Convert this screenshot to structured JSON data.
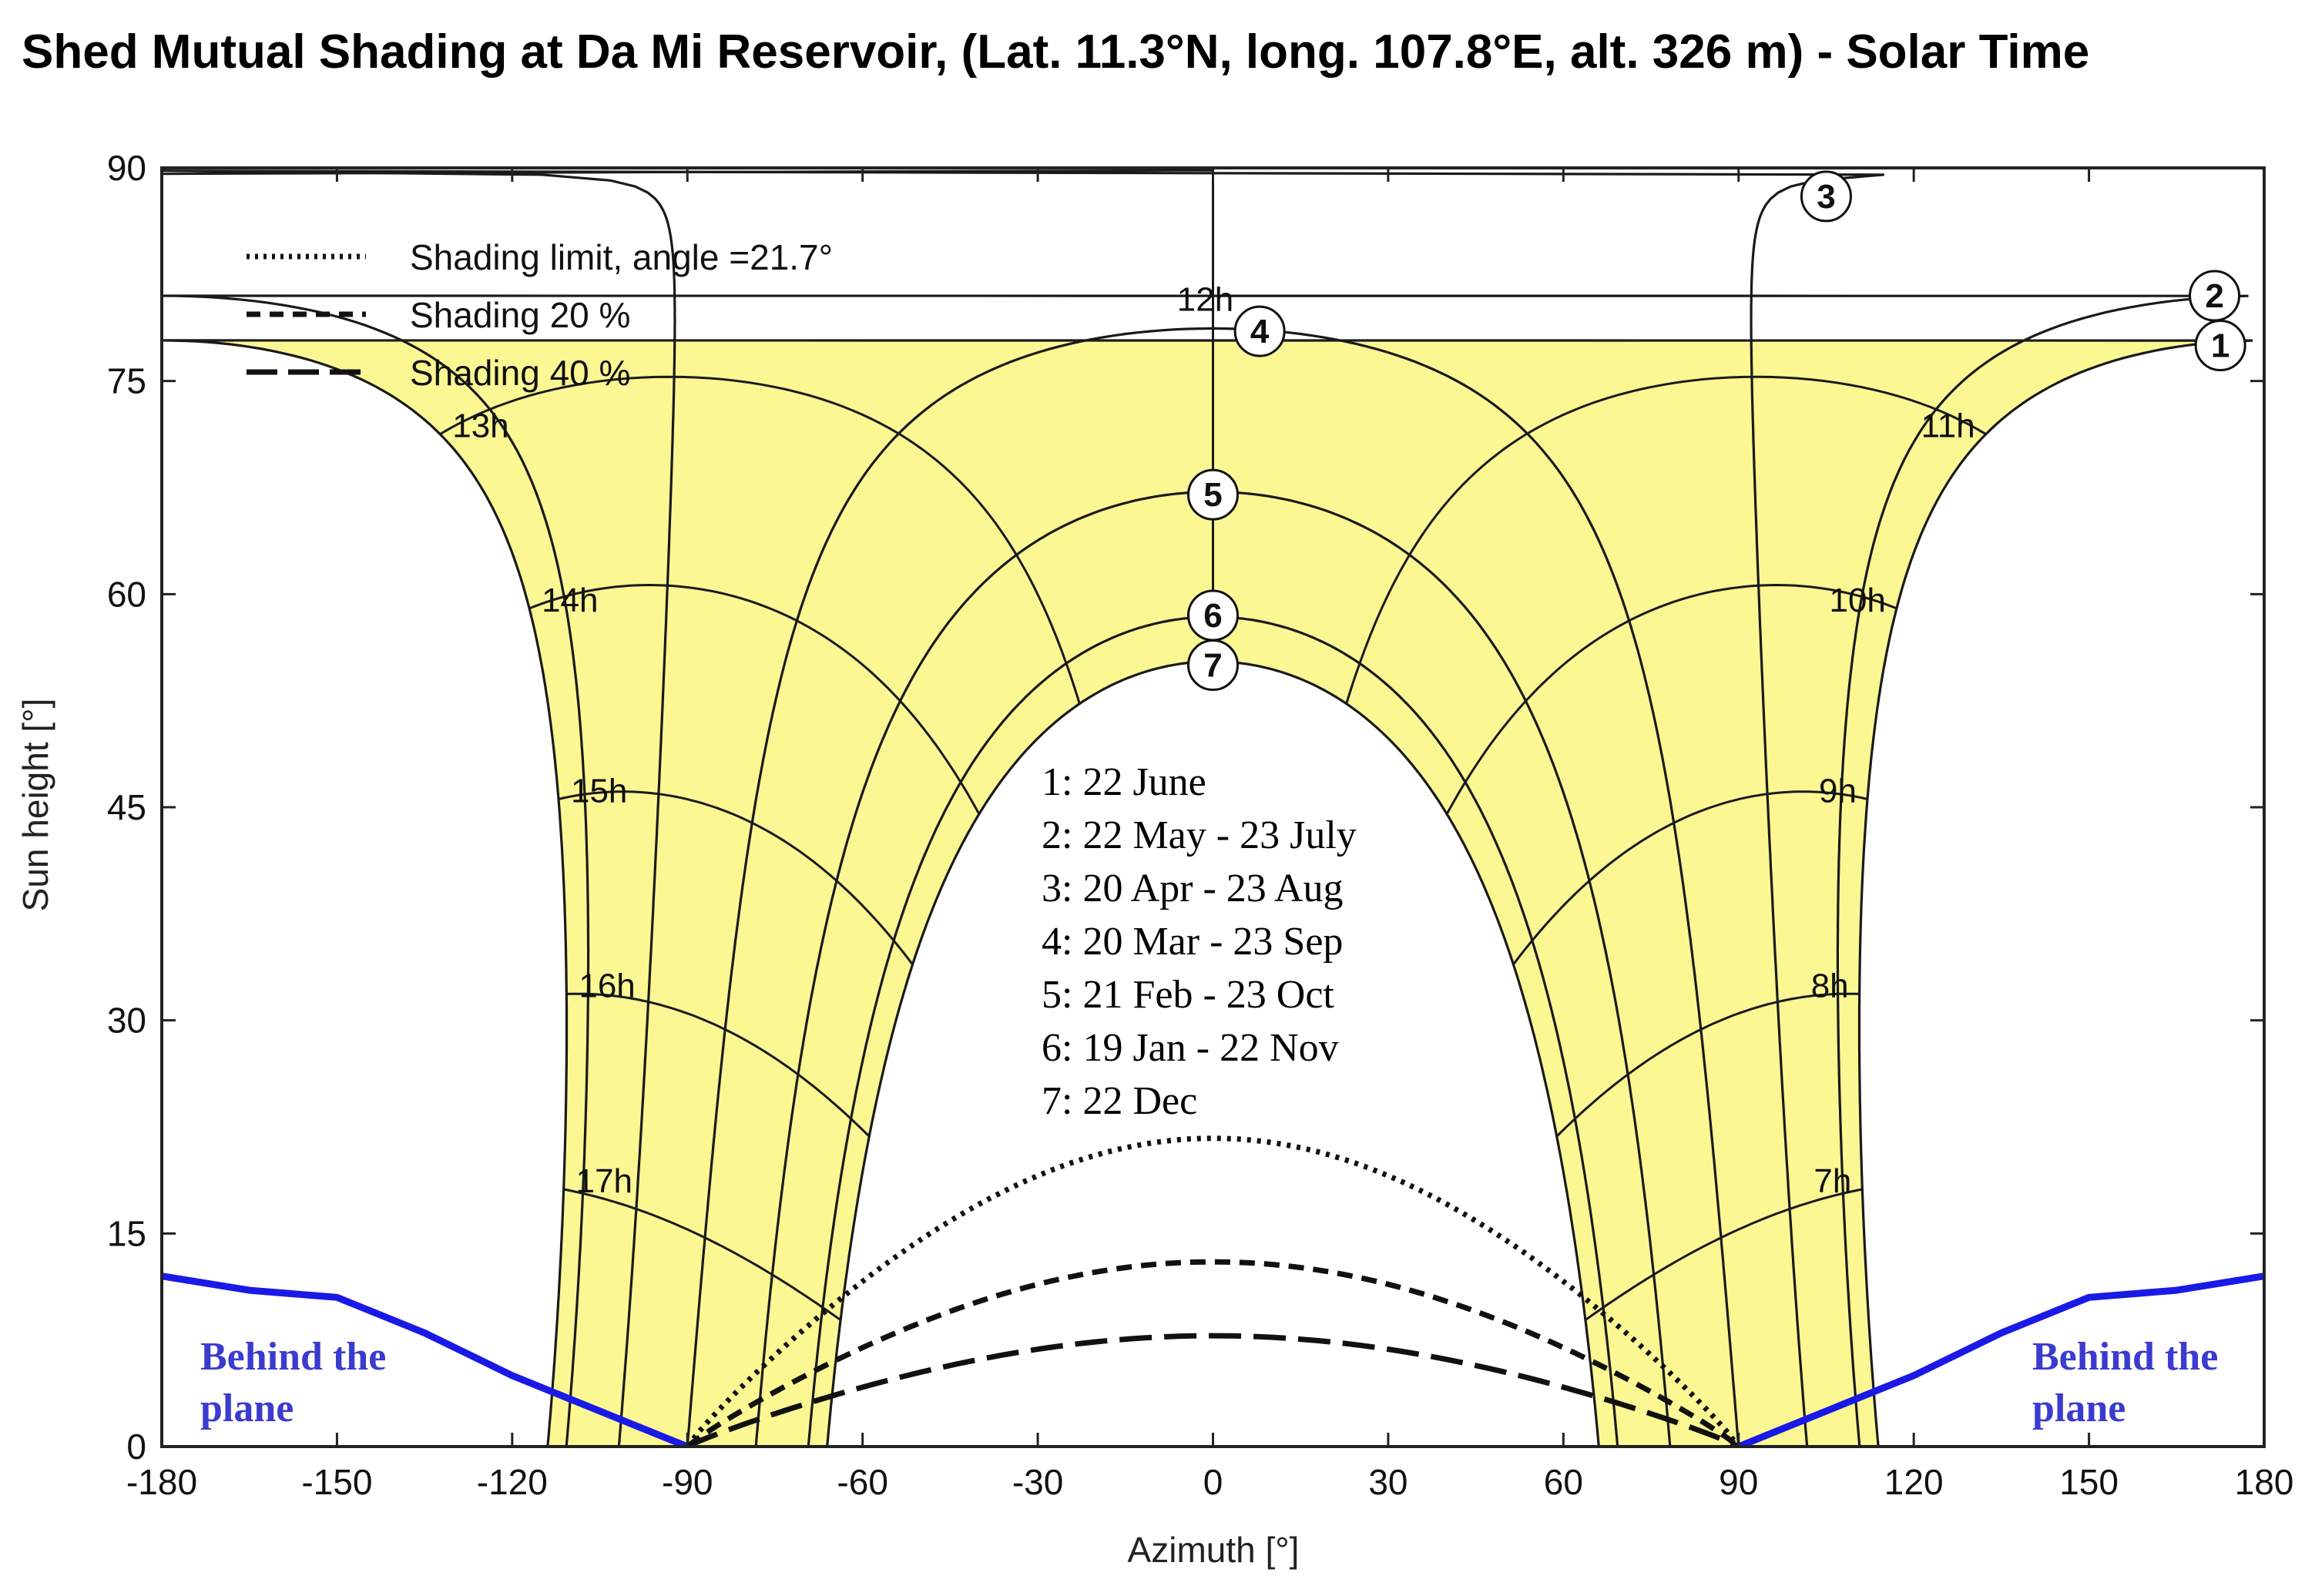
{
  "chart_data": {
    "type": "line",
    "title": "Shed Mutual Shading at  Da Mi Reservoir, (Lat. 11.3°N, long. 107.8°E, alt. 326 m) - Solar Time",
    "xlabel": "Azimuth  [°]",
    "ylabel": "Sun height  [°]",
    "xlim": [
      -180,
      180
    ],
    "ylim": [
      0,
      90
    ],
    "xticks": [
      -180,
      -150,
      -120,
      -90,
      -60,
      -30,
      0,
      30,
      60,
      90,
      120,
      150,
      180
    ],
    "yticks": [
      0,
      15,
      30,
      45,
      60,
      75,
      90
    ],
    "colors": {
      "fill": "#fbf793",
      "line": "#1a1a1a",
      "behind": "#1a1ae6",
      "behind_text": "#3b3bd0"
    },
    "legend": [
      {
        "label": "Shading limit, angle =21.7°",
        "style": "dotted"
      },
      {
        "label": "Shading 20 %",
        "style": "dashed"
      },
      {
        "label": "Shading 40 %",
        "style": "longdash"
      }
    ],
    "sun_paths": [
      {
        "id": "1",
        "label": "1: 22 June",
        "decl": 23.44,
        "marker_x": 172.5,
        "marker_y": 77.5
      },
      {
        "id": "2",
        "label": "2: 22 May - 23 July",
        "decl": 20.3,
        "marker_x": 171.5,
        "marker_y": 81
      },
      {
        "id": "3",
        "label": "3: 20 Apr - 23 Aug",
        "decl": 11.5,
        "marker_x": 105,
        "marker_y": 88
      },
      {
        "id": "4",
        "label": "4: 20 Mar - 23 Sep",
        "decl": 0,
        "marker_x": 8,
        "marker_y": 78.5
      },
      {
        "id": "5",
        "label": "5: 21 Feb - 23 Oct",
        "decl": -11.5,
        "marker_x": 0,
        "marker_y": 67
      },
      {
        "id": "6",
        "label": "6: 19 Jan - 22 Nov",
        "decl": -20.3,
        "marker_x": 0,
        "marker_y": 58.5
      },
      {
        "id": "7",
        "label": "7: 22 Dec",
        "decl": -23.44,
        "marker_x": 0,
        "marker_y": 55
      }
    ],
    "latitude": 11.3,
    "hour_lines": [
      {
        "label": "7h",
        "hour": 7
      },
      {
        "label": "8h",
        "hour": 8
      },
      {
        "label": "9h",
        "hour": 9
      },
      {
        "label": "10h",
        "hour": 10
      },
      {
        "label": "11h",
        "hour": 11
      },
      {
        "label": "12h",
        "hour": 12
      },
      {
        "label": "13h",
        "hour": 13
      },
      {
        "label": "14h",
        "hour": 14
      },
      {
        "label": "15h",
        "hour": 15
      },
      {
        "label": "16h",
        "hour": 16
      },
      {
        "label": "17h",
        "hour": 17
      }
    ],
    "shading_curves": [
      {
        "name": "Shading limit",
        "style": "dotted",
        "peak": 21.7
      },
      {
        "name": "Shading 20 %",
        "style": "dashed",
        "peak": 13
      },
      {
        "name": "Shading 40 %",
        "style": "longdash",
        "peak": 7.8
      }
    ],
    "behind_plane": {
      "label_line1": "Behind the",
      "label_line2": "plane",
      "left": [
        [
          -180,
          12
        ],
        [
          -165,
          11
        ],
        [
          -150,
          10.5
        ],
        [
          -135,
          8
        ],
        [
          -120,
          5
        ],
        [
          -105,
          2.5
        ],
        [
          -90,
          0
        ]
      ],
      "right": [
        [
          90,
          0
        ],
        [
          105,
          2.5
        ],
        [
          120,
          5
        ],
        [
          135,
          8
        ],
        [
          150,
          10.5
        ],
        [
          165,
          11
        ],
        [
          180,
          12
        ]
      ]
    }
  }
}
